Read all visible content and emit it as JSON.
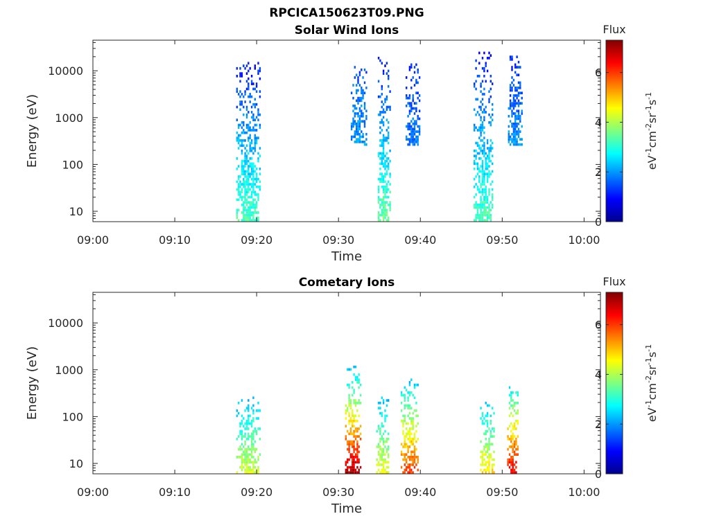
{
  "figure_title": "RPCICA150623T09.PNG",
  "chart_data": [
    {
      "type": "heatmap",
      "title": "Solar Wind Ions",
      "xlabel": "Time",
      "ylabel": "Energy (eV)",
      "yscale": "log",
      "xlim": [
        "09:00",
        "10:02"
      ],
      "ylim": [
        6,
        45000
      ],
      "xticks": [
        "09:00",
        "09:10",
        "09:20",
        "09:30",
        "09:40",
        "09:50",
        "10:00"
      ],
      "yticks": [
        "10",
        "100",
        "1000",
        "10000"
      ],
      "colorbar": {
        "label": "Flux",
        "unit_text": "eV-1cm-2sr-1s-1",
        "min": 0,
        "max": 7.3,
        "ticks": [
          "0",
          "2",
          "4",
          "6"
        ],
        "colormap": "jet"
      },
      "bursts": [
        {
          "t0": 17.5,
          "t1": 20.4,
          "emin": 6,
          "emax": 15000,
          "flux_low_energy": 3.3,
          "flux_high_energy": 1.0
        },
        {
          "t0": 31.5,
          "t1": 33.5,
          "emin": 250,
          "emax": 12000,
          "flux_low_energy": 2.0,
          "flux_high_energy": 1.5
        },
        {
          "t0": 34.8,
          "t1": 36.3,
          "emin": 6,
          "emax": 18000,
          "flux_low_energy": 3.5,
          "flux_high_energy": 1.0
        },
        {
          "t0": 38.2,
          "t1": 40.0,
          "emin": 250,
          "emax": 18000,
          "flux_low_energy": 1.8,
          "flux_high_energy": 1.2
        },
        {
          "t0": 46.5,
          "t1": 48.9,
          "emin": 6,
          "emax": 25000,
          "flux_low_energy": 3.3,
          "flux_high_energy": 1.0
        },
        {
          "t0": 50.7,
          "t1": 52.5,
          "emin": 250,
          "emax": 22000,
          "flux_low_energy": 2.0,
          "flux_high_energy": 1.2
        }
      ]
    },
    {
      "type": "heatmap",
      "title": "Cometary Ions",
      "xlabel": "Time",
      "ylabel": "Energy (eV)",
      "yscale": "log",
      "xlim": [
        "09:00",
        "10:02"
      ],
      "ylim": [
        6,
        45000
      ],
      "xticks": [
        "09:00",
        "09:10",
        "09:20",
        "09:30",
        "09:40",
        "09:50",
        "10:00"
      ],
      "yticks": [
        "10",
        "100",
        "1000",
        "10000"
      ],
      "colorbar": {
        "label": "Flux",
        "unit_text": "eV-1cm-2sr-1s-1",
        "min": 0,
        "max": 7.3,
        "ticks": [
          "0",
          "2",
          "4",
          "6"
        ],
        "colormap": "jet"
      },
      "bursts": [
        {
          "t0": 17.5,
          "t1": 20.4,
          "emin": 6,
          "emax": 250,
          "flux_low_energy": 4.2,
          "flux_high_energy": 2.2
        },
        {
          "t0": 30.8,
          "t1": 32.8,
          "emin": 6,
          "emax": 1200,
          "flux_low_energy": 7.0,
          "flux_high_energy": 2.2
        },
        {
          "t0": 34.6,
          "t1": 36.2,
          "emin": 6,
          "emax": 250,
          "flux_low_energy": 4.5,
          "flux_high_energy": 2.2
        },
        {
          "t0": 37.6,
          "t1": 39.8,
          "emin": 6,
          "emax": 600,
          "flux_low_energy": 6.0,
          "flux_high_energy": 2.3
        },
        {
          "t0": 47.3,
          "t1": 49.0,
          "emin": 6,
          "emax": 200,
          "flux_low_energy": 4.8,
          "flux_high_energy": 2.3
        },
        {
          "t0": 50.6,
          "t1": 52.0,
          "emin": 6,
          "emax": 550,
          "flux_low_energy": 6.6,
          "flux_high_energy": 2.4
        }
      ]
    }
  ]
}
